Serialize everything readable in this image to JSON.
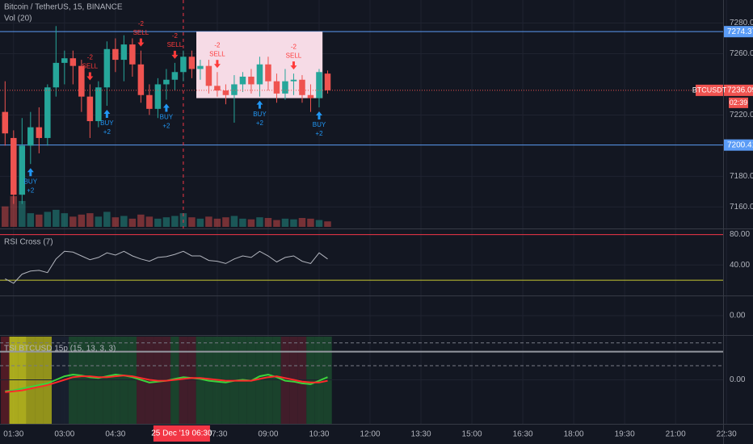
{
  "chart_data": [
    {
      "type": "candlestick",
      "title": "Bitcoin / TetherUS, 15, BINANCE",
      "volume_title": "Vol (20)",
      "x": [
        75,
        90,
        105,
        120,
        135,
        150,
        165,
        180,
        195,
        210,
        225,
        240,
        255,
        270,
        285,
        300,
        315,
        330,
        345,
        360,
        375,
        390,
        405,
        420,
        435,
        450,
        465,
        480,
        495,
        510,
        525,
        540,
        555,
        570,
        585,
        600,
        615,
        630,
        645
      ],
      "open": [
        7222,
        7205,
        7168,
        7200,
        7212,
        7205,
        7238,
        7254,
        7257,
        7252,
        7232,
        7216,
        7238,
        7263,
        7256,
        7266,
        7253,
        7233,
        7224,
        7240,
        7243,
        7248,
        7258,
        7250,
        7252,
        7239,
        7236,
        7233,
        7240,
        7245,
        7240,
        7253,
        7242,
        7234,
        7242,
        7243,
        7233,
        7231,
        7247
      ],
      "high": [
        7242,
        7210,
        7218,
        7222,
        7225,
        7240,
        7278,
        7262,
        7262,
        7256,
        7240,
        7242,
        7268,
        7270,
        7272,
        7270,
        7262,
        7240,
        7244,
        7250,
        7254,
        7262,
        7262,
        7256,
        7256,
        7248,
        7240,
        7246,
        7248,
        7250,
        7258,
        7258,
        7247,
        7250,
        7247,
        7246,
        7240,
        7250,
        7249
      ],
      "low": [
        7200,
        7162,
        7162,
        7188,
        7195,
        7200,
        7232,
        7240,
        7240,
        7222,
        7205,
        7212,
        7226,
        7248,
        7242,
        7245,
        7228,
        7220,
        7218,
        7230,
        7236,
        7242,
        7244,
        7243,
        7234,
        7232,
        7227,
        7215,
        7235,
        7234,
        7232,
        7236,
        7228,
        7230,
        7233,
        7228,
        7222,
        7225,
        7234
      ],
      "close": [
        7208,
        7168,
        7200,
        7212,
        7205,
        7238,
        7254,
        7257,
        7252,
        7232,
        7216,
        7238,
        7263,
        7256,
        7266,
        7253,
        7233,
        7224,
        7240,
        7243,
        7248,
        7258,
        7250,
        7252,
        7239,
        7236,
        7233,
        7240,
        7245,
        7240,
        7253,
        7242,
        7234,
        7242,
        7243,
        7233,
        7231,
        7248,
        7236.09
      ],
      "volume": [
        30,
        45,
        38,
        20,
        18,
        22,
        25,
        20,
        15,
        18,
        20,
        15,
        22,
        14,
        16,
        12,
        18,
        15,
        12,
        14,
        16,
        20,
        14,
        12,
        15,
        12,
        14,
        16,
        12,
        11,
        14,
        13,
        10,
        12,
        11,
        13,
        12,
        10,
        8
      ],
      "up_color": "#26a69a",
      "down_color": "#ef5350",
      "xlim": [
        66,
        1344
      ],
      "xticks": [
        {
          "value": 90,
          "label": "01:30"
        },
        {
          "value": 180,
          "label": "03:00"
        },
        {
          "value": 270,
          "label": "04:30"
        },
        {
          "value": 450,
          "label": "07:30"
        },
        {
          "value": 540,
          "label": "09:00"
        },
        {
          "value": 630,
          "label": "10:30"
        },
        {
          "value": 720,
          "label": "12:00"
        },
        {
          "value": 810,
          "label": "13:30"
        },
        {
          "value": 900,
          "label": "15:00"
        },
        {
          "value": 990,
          "label": "16:30"
        },
        {
          "value": 1080,
          "label": "18:00"
        },
        {
          "value": 1170,
          "label": "19:30"
        },
        {
          "value": 1260,
          "label": "21:00"
        },
        {
          "value": 1350,
          "label": "22:30"
        }
      ],
      "ylim": [
        7146,
        7295
      ],
      "yticks": [
        {
          "value": 7280,
          "label": "7280.00"
        },
        {
          "value": 7260,
          "label": "7260.00"
        },
        {
          "value": 7220,
          "label": "7220.00"
        },
        {
          "value": 7180,
          "label": "7180.00"
        },
        {
          "value": 7160,
          "label": "7160.00"
        }
      ],
      "grid": true,
      "levels": [
        {
          "value": 7274.37,
          "color": "#5b9cf6"
        },
        {
          "value": 7200.41,
          "color": "#5b9cf6"
        }
      ],
      "symbol": "BTCUSDT",
      "countdown": "02:39",
      "last_color": "#ef5350",
      "box": {
        "x": [
          413,
          636
        ],
        "y": [
          7231,
          7274.37
        ],
        "color": "#f6dbe6"
      },
      "crosshair": {
        "x": 390,
        "label": "25 Dec '19  06:30",
        "color": "#f23645"
      },
      "signals": [
        {
          "x": 120,
          "label": "BUY",
          "qty": "+2",
          "position": "below",
          "color": "#2196f3"
        },
        {
          "x": 225,
          "label": "SELL",
          "qty": "-2",
          "position": "above",
          "color": "#ff3b3b"
        },
        {
          "x": 255,
          "label": "BUY",
          "qty": "+2",
          "position": "below",
          "color": "#2196f3"
        },
        {
          "x": 315,
          "label": "SELL",
          "qty": "-2",
          "position": "above",
          "color": "#ff3b3b"
        },
        {
          "x": 360,
          "label": "BUY",
          "qty": "+2",
          "position": "below",
          "color": "#2196f3"
        },
        {
          "x": 375,
          "label": "SELL",
          "qty": "-2",
          "position": "above",
          "color": "#ff3b3b"
        },
        {
          "x": 450,
          "label": "SELL",
          "qty": "-2",
          "position": "above",
          "color": "#ff3b3b"
        },
        {
          "x": 525,
          "label": "BUY",
          "qty": "+2",
          "position": "below",
          "color": "#2196f3"
        },
        {
          "x": 585,
          "label": "SELL",
          "qty": "-2",
          "position": "above",
          "color": "#ff3b3b"
        },
        {
          "x": 630,
          "label": "BUY",
          "qty": "+2",
          "position": "below",
          "color": "#2196f3"
        }
      ]
    },
    {
      "type": "line",
      "title": "RSI Cross (7)",
      "series": [
        {
          "color": "#b2b5be",
          "values": [
            22,
            16,
            28,
            32,
            33,
            30,
            48,
            58,
            57,
            52,
            47,
            50,
            56,
            53,
            58,
            52,
            48,
            45,
            50,
            51,
            54,
            58,
            52,
            52,
            46,
            45,
            42,
            48,
            52,
            50,
            58,
            52,
            44,
            50,
            52,
            45,
            42,
            56,
            48
          ]
        }
      ],
      "ylim": [
        0,
        87
      ],
      "yticks": [
        {
          "value": 80,
          "label": "80.00"
        },
        {
          "value": 40,
          "label": "40.00"
        }
      ],
      "levels": [
        {
          "value": 80,
          "color": "#f23645"
        },
        {
          "value": 20,
          "color": "#c8c832"
        }
      ]
    },
    {
      "type": "line",
      "series": [],
      "ylim": [
        -1,
        1
      ],
      "yticks": [
        {
          "value": 0,
          "label": "0.00"
        }
      ],
      "levels": []
    },
    {
      "type": "line",
      "title": "TSI BTCUSD 15p (15, 13, 3, 3)",
      "series": [
        {
          "color": "#3cd33c",
          "values": [
            -13,
            -12,
            -10,
            -8,
            -6,
            -4,
            0,
            4,
            6,
            5,
            3,
            2,
            4,
            6,
            5,
            3,
            0,
            -3,
            -2,
            -1,
            1,
            3,
            2,
            1,
            -1,
            -2,
            -3,
            -1,
            0,
            -1,
            4,
            6,
            3,
            -1,
            -2,
            -4,
            -5,
            -1,
            3
          ]
        },
        {
          "color": "#ff2a2a",
          "values": [
            -14,
            -13,
            -12,
            -10,
            -8,
            -6,
            -3,
            0,
            3,
            4,
            4,
            3,
            3,
            4,
            5,
            4,
            2,
            0,
            -1,
            -1,
            0,
            1,
            2,
            2,
            1,
            0,
            -1,
            -1,
            -1,
            -1,
            1,
            3,
            4,
            2,
            0,
            -2,
            -3,
            -3,
            -1
          ]
        }
      ],
      "ylim": [
        -50,
        50
      ],
      "yticks": [
        {
          "value": 0,
          "label": "0.00"
        }
      ],
      "levels": [
        {
          "value": 42,
          "color": "#787b86",
          "dash": true
        },
        {
          "value": 32,
          "color": "#9598a1",
          "dash": false
        },
        {
          "value": 16,
          "color": "#787b86",
          "dash": true
        }
      ],
      "bands": [
        "#5c1c26",
        "#c6c41c",
        "#c6c41c",
        "#a9a81a",
        "#a9a81a",
        "#a9a81a",
        "#1a2130",
        "#1a2130",
        "#1c4a2e",
        "#1c4a2e",
        "#1c4a2e",
        "#1c4a2e",
        "#1c4a2e",
        "#1c4a2e",
        "#1c4a2e",
        "#1c4a2e",
        "#4a1f2c",
        "#4a1f2c",
        "#4a1f2c",
        "#4a1f2c",
        "#1c4a2e",
        "#4a1f2c",
        "#4a1f2c",
        "#1c4a2e",
        "#1c4a2e",
        "#1c4a2e",
        "#1c4a2e",
        "#1c4a2e",
        "#1c4a2e",
        "#1c4a2e",
        "#1c4a2e",
        "#1c4a2e",
        "#1c4a2e",
        "#4a1f2c",
        "#4a1f2c",
        "#4a1f2c",
        "#1c4a2e",
        "#1c4a2e",
        "#1c4a2e"
      ]
    }
  ]
}
